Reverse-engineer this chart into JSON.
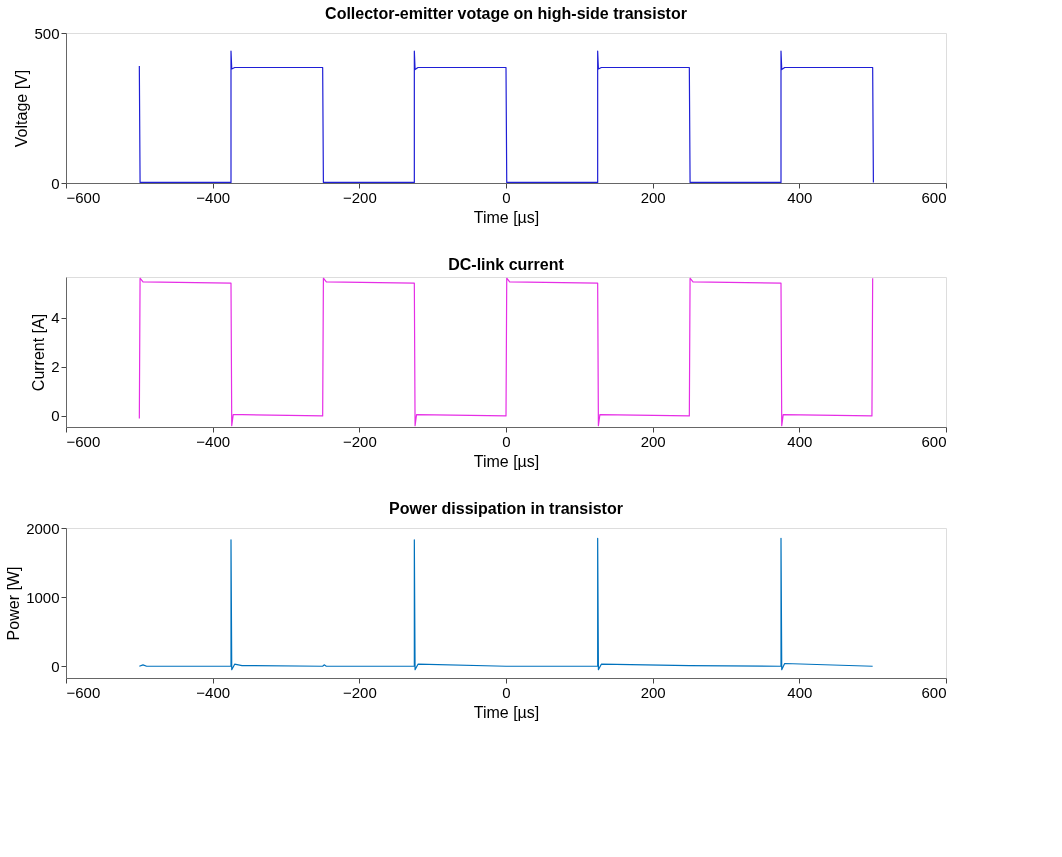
{
  "chart_data": [
    {
      "type": "line",
      "title": "Collector-emitter votage on high-side transistor",
      "xlabel": "Time [µs]",
      "ylabel": "Voltage [V]",
      "xlim": [
        -600,
        600
      ],
      "xticks": [
        -600,
        -400,
        -200,
        0,
        200,
        400,
        600
      ],
      "ylim": [
        0,
        500
      ],
      "yticks": [
        0,
        500
      ],
      "grid": false,
      "series": [
        {
          "color": "#1f1fd6",
          "x": [
            -500,
            -499,
            -375,
            -375,
            -374,
            -370,
            -250,
            -249,
            -125,
            -125,
            -124,
            -120,
            0,
            1,
            125,
            125,
            126,
            130,
            250,
            251,
            375,
            375,
            376,
            380,
            500,
            501
          ],
          "values": [
            390,
            2,
            2,
            440,
            380,
            385,
            385,
            2,
            2,
            440,
            378,
            385,
            385,
            2,
            2,
            440,
            380,
            385,
            385,
            2,
            2,
            440,
            378,
            385,
            385,
            2
          ]
        }
      ]
    },
    {
      "type": "line",
      "title": "DC-link current",
      "xlabel": "Time [µs]",
      "ylabel": "Current [A]",
      "xlim": [
        -600,
        600
      ],
      "xticks": [
        -600,
        -400,
        -200,
        0,
        200,
        400,
        600
      ],
      "ylim": [
        -0.45,
        5.65
      ],
      "yticks": [
        0,
        2,
        4
      ],
      "grid": false,
      "series": [
        {
          "color": "#e62ee6",
          "x": [
            -500,
            -499,
            -495,
            -375,
            -374,
            -372,
            -360,
            -250,
            -249,
            -245,
            -125,
            -124,
            -122,
            0,
            1,
            5,
            125,
            126,
            128,
            250,
            251,
            255,
            375,
            376,
            378,
            499,
            500
          ],
          "values": [
            -0.1,
            5.6,
            5.45,
            5.4,
            -0.4,
            0.05,
            0.05,
            0,
            5.6,
            5.45,
            5.4,
            -0.4,
            0.05,
            0,
            5.6,
            5.45,
            5.4,
            -0.4,
            0.05,
            0,
            5.6,
            5.45,
            5.4,
            -0.4,
            0.05,
            0,
            5.6
          ]
        }
      ]
    },
    {
      "type": "line",
      "title": "Power dissipation in transistor",
      "xlabel": "Time [µs]",
      "ylabel": "Power [W]",
      "xlim": [
        -600,
        600
      ],
      "xticks": [
        -600,
        -400,
        -200,
        0,
        200,
        400,
        600
      ],
      "ylim": [
        -170,
        2000
      ],
      "yticks": [
        0,
        1000,
        2000
      ],
      "grid": false,
      "series": [
        {
          "color": "#0072bd",
          "x": [
            -500,
            -495,
            -490,
            -375,
            -375,
            -374,
            -370,
            -360,
            -250,
            -248,
            -245,
            -125,
            -125,
            -124,
            -120,
            0,
            125,
            125,
            126,
            130,
            250,
            375,
            375,
            376,
            380,
            500
          ],
          "values": [
            0,
            20,
            0,
            0,
            1830,
            -50,
            30,
            10,
            0,
            20,
            0,
            0,
            1830,
            -50,
            30,
            0,
            0,
            1850,
            -50,
            30,
            10,
            0,
            1850,
            -50,
            40,
            0
          ]
        }
      ]
    }
  ]
}
